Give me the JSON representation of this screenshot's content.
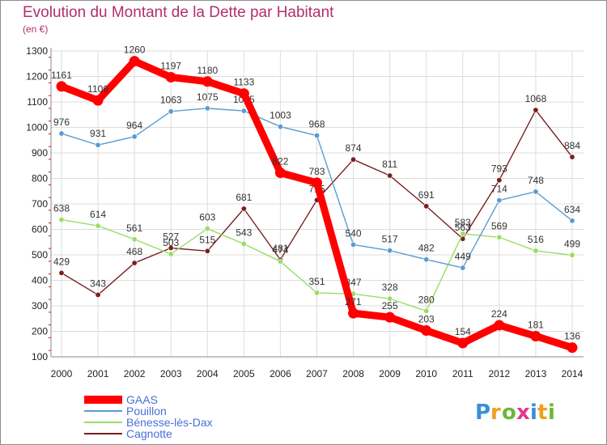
{
  "title": "Evolution du Montant de la Dette par Habitant",
  "subtitle": "(en €)",
  "logo_text": "Proxiti",
  "colors": {
    "title": "#b0306a",
    "grid": "#dddddd",
    "axis": "#888888"
  },
  "chart_data": {
    "type": "line",
    "title": "Evolution du Montant de la Dette par Habitant",
    "subtitle": "(en €)",
    "xlabel": "",
    "ylabel": "",
    "x": [
      "2000",
      "2001",
      "2002",
      "2003",
      "2004",
      "2005",
      "2006",
      "2007",
      "2008",
      "2009",
      "2010",
      "2011",
      "2012",
      "2013",
      "2014"
    ],
    "ylim": [
      100,
      1300
    ],
    "yticks": [
      100,
      200,
      300,
      400,
      500,
      600,
      700,
      800,
      900,
      1000,
      1100,
      1200,
      1300
    ],
    "grid": true,
    "legend": "bottom-left",
    "series": [
      {
        "name": "GAAS",
        "color": "#ff0000",
        "style": "thick",
        "values": [
          1161,
          1106,
          1260,
          1197,
          1180,
          1133,
          822,
          783,
          271,
          255,
          203,
          154,
          224,
          181,
          136
        ]
      },
      {
        "name": "Pouillon",
        "color": "#5b9bd0",
        "style": "thin",
        "values": [
          976,
          931,
          964,
          1063,
          1075,
          1065,
          1003,
          968,
          540,
          517,
          482,
          449,
          714,
          748,
          634
        ]
      },
      {
        "name": "Bénesse-lès-Dax",
        "color": "#99dd66",
        "style": "thin",
        "values": [
          638,
          614,
          561,
          503,
          603,
          543,
          474,
          351,
          347,
          328,
          280,
          583,
          569,
          516,
          499
        ]
      },
      {
        "name": "Cagnotte",
        "color": "#7a1f1f",
        "style": "thin",
        "values": [
          429,
          343,
          468,
          527,
          515,
          681,
          481,
          715,
          874,
          811,
          691,
          563,
          793,
          1068,
          884
        ]
      }
    ]
  }
}
